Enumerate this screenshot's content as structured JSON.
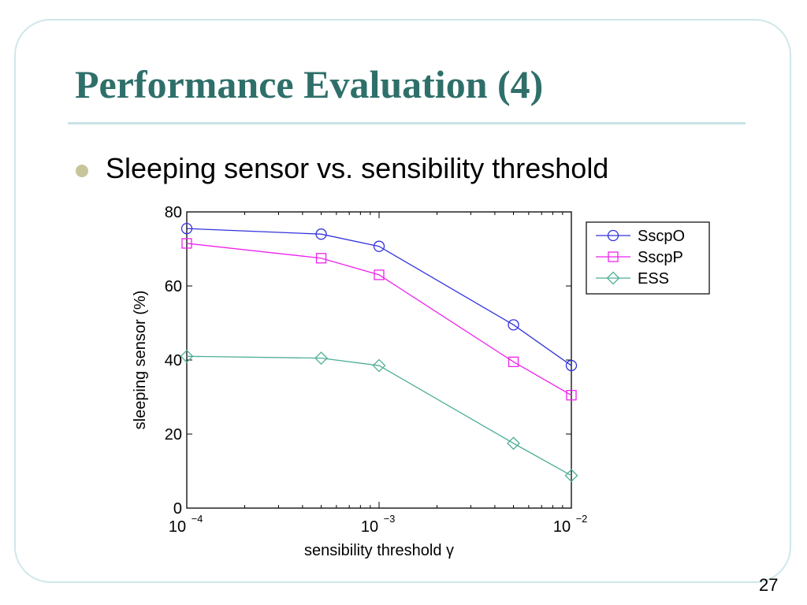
{
  "slide": {
    "title": "Performance Evaluation (4)",
    "bullet": "Sleeping sensor vs. sensibility threshold",
    "page_number": "27"
  },
  "chart_data": {
    "type": "line",
    "title": "",
    "xlabel": "sensibility threshold γ",
    "ylabel": "sleeping sensor (%)",
    "xscale": "log",
    "xlim": [
      0.0001,
      0.01
    ],
    "ylim": [
      0,
      80
    ],
    "x_ticks": [
      {
        "value": 0.0001,
        "base": "10",
        "exp": "−4"
      },
      {
        "value": 0.001,
        "base": "10",
        "exp": "−3"
      },
      {
        "value": 0.01,
        "base": "10",
        "exp": "−2"
      }
    ],
    "y_ticks": [
      0,
      20,
      40,
      60,
      80
    ],
    "x": [
      0.0001,
      0.0005,
      0.001,
      0.005,
      0.01
    ],
    "series": [
      {
        "name": "SscpO",
        "values": [
          75.5,
          74.0,
          70.7,
          49.5,
          38.5
        ],
        "color": "#3333dd",
        "marker": "circle"
      },
      {
        "name": "SscpP",
        "values": [
          71.5,
          67.5,
          63.0,
          39.5,
          30.5
        ],
        "color": "#ee22ee",
        "marker": "square"
      },
      {
        "name": "ESS",
        "values": [
          41.0,
          40.5,
          38.5,
          17.5,
          8.8
        ],
        "color": "#4fae98",
        "marker": "diamond"
      }
    ],
    "grid": false,
    "legend_position": "outside-right-top"
  }
}
